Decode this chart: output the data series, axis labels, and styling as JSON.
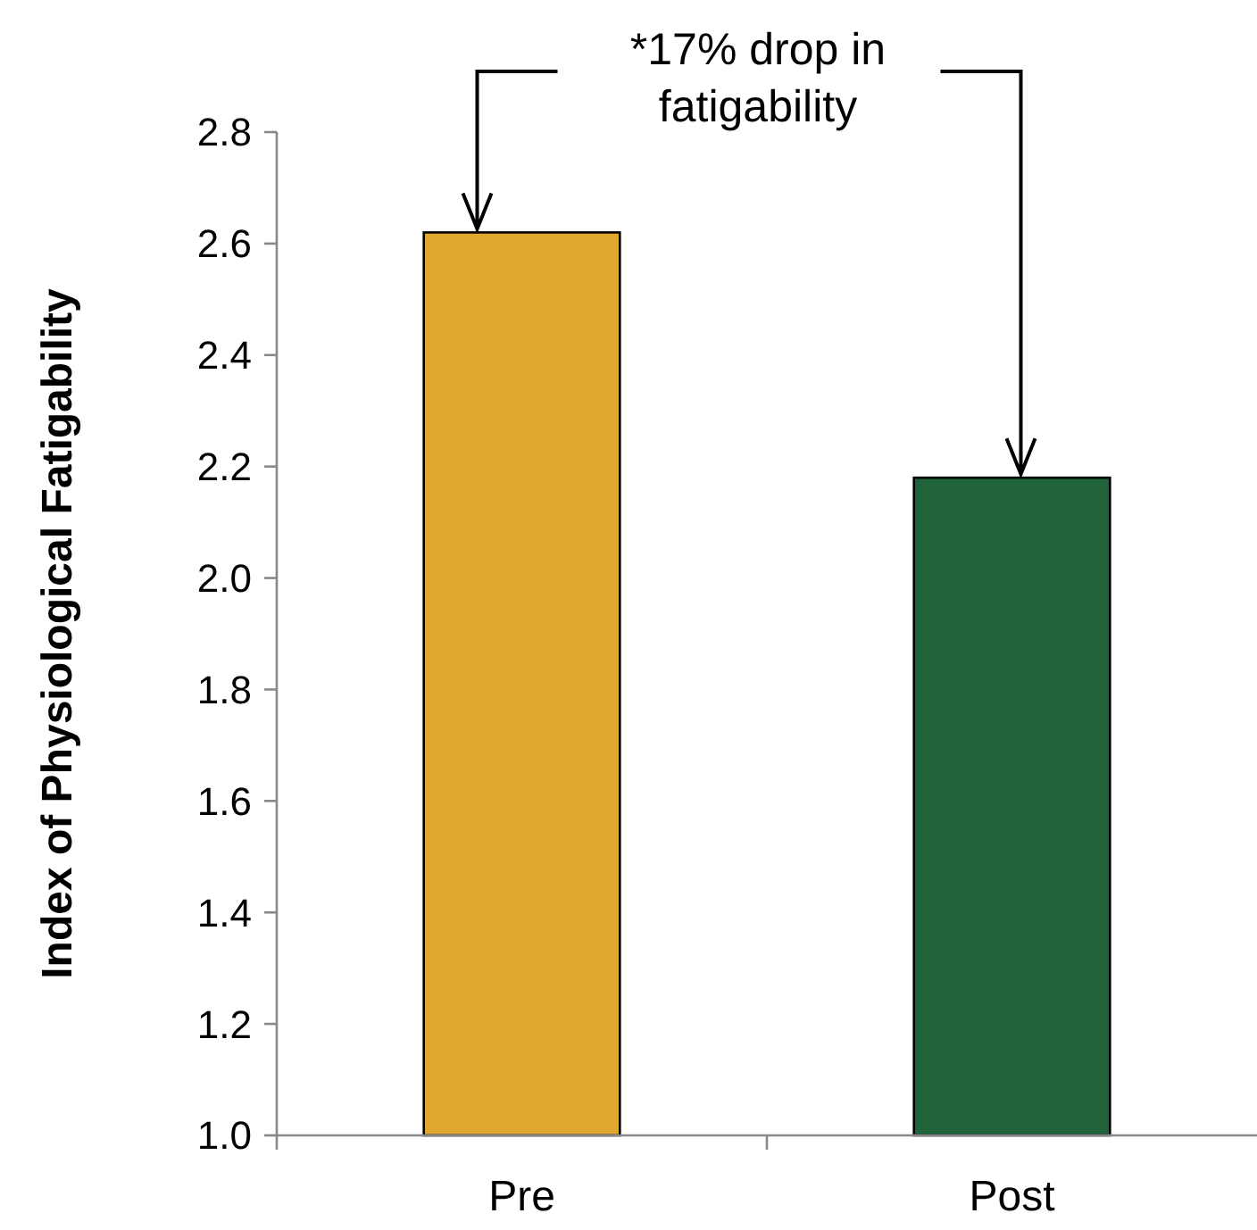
{
  "chart_data": {
    "type": "bar",
    "ylabel": "Index of Physiological Fatigability",
    "categories": [
      "Pre",
      "Post"
    ],
    "values": [
      2.62,
      2.18
    ],
    "colors": [
      "#e0a82e",
      "#20633a"
    ],
    "ylim": [
      1.0,
      2.8
    ],
    "yticks": [
      {
        "value": 1.0,
        "label": "1.0"
      },
      {
        "value": 1.2,
        "label": "1.2"
      },
      {
        "value": 1.4,
        "label": "1.4"
      },
      {
        "value": 1.6,
        "label": "1.6"
      },
      {
        "value": 1.8,
        "label": "1.8"
      },
      {
        "value": 2.0,
        "label": "2.0"
      },
      {
        "value": 2.2,
        "label": "2.2"
      },
      {
        "value": 2.4,
        "label": "2.4"
      },
      {
        "value": 2.6,
        "label": "2.6"
      },
      {
        "value": 2.8,
        "label": "2.8"
      }
    ],
    "annotations": [
      "*17% drop in fatigability"
    ],
    "grid": false
  }
}
